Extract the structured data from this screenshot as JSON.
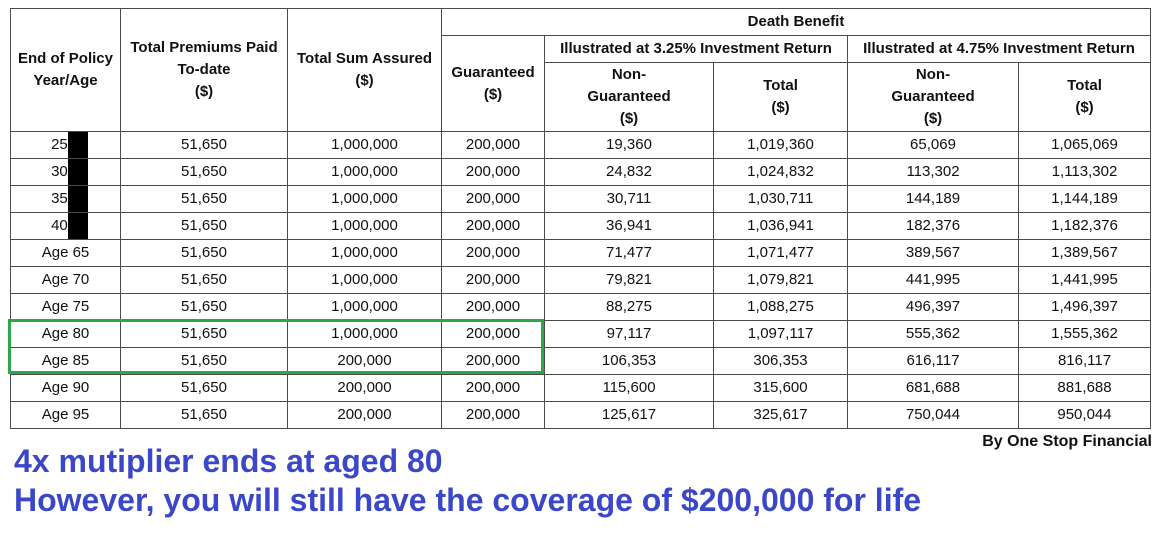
{
  "table": {
    "header": {
      "col_year": [
        "End of Policy",
        "Year/Age"
      ],
      "col_premiums": [
        "Total Premiums Paid",
        "To-date",
        "($)"
      ],
      "col_sum_assured": [
        "Total Sum Assured",
        "($)"
      ],
      "death_benefit": "Death Benefit",
      "guaranteed": [
        "Guaranteed",
        "($)"
      ],
      "illustrated_low": "Illustrated at 3.25% Investment Return",
      "illustrated_high": "Illustrated at 4.75% Investment Return",
      "non_guaranteed": [
        "Non-",
        "Guaranteed",
        "($)"
      ],
      "total": [
        "Total",
        "($)"
      ]
    },
    "rows": [
      [
        "25/",
        "51,650",
        "1,000,000",
        "200,000",
        "19,360",
        "1,019,360",
        "65,069",
        "1,065,069"
      ],
      [
        "30/",
        "51,650",
        "1,000,000",
        "200,000",
        "24,832",
        "1,024,832",
        "113,302",
        "1,113,302"
      ],
      [
        "35/",
        "51,650",
        "1,000,000",
        "200,000",
        "30,711",
        "1,030,711",
        "144,189",
        "1,144,189"
      ],
      [
        "40/",
        "51,650",
        "1,000,000",
        "200,000",
        "36,941",
        "1,036,941",
        "182,376",
        "1,182,376"
      ],
      [
        "Age 65",
        "51,650",
        "1,000,000",
        "200,000",
        "71,477",
        "1,071,477",
        "389,567",
        "1,389,567"
      ],
      [
        "Age 70",
        "51,650",
        "1,000,000",
        "200,000",
        "79,821",
        "1,079,821",
        "441,995",
        "1,441,995"
      ],
      [
        "Age 75",
        "51,650",
        "1,000,000",
        "200,000",
        "88,275",
        "1,088,275",
        "496,397",
        "1,496,397"
      ],
      [
        "Age 80",
        "51,650",
        "1,000,000",
        "200,000",
        "97,117",
        "1,097,117",
        "555,362",
        "1,555,362"
      ],
      [
        "Age 85",
        "51,650",
        "200,000",
        "200,000",
        "106,353",
        "306,353",
        "616,117",
        "816,117"
      ],
      [
        "Age 90",
        "51,650",
        "200,000",
        "200,000",
        "115,600",
        "315,600",
        "681,688",
        "881,688"
      ],
      [
        "Age 95",
        "51,650",
        "200,000",
        "200,000",
        "125,617",
        "325,617",
        "750,044",
        "950,044"
      ]
    ]
  },
  "credit": "By One Stop Financial",
  "note": {
    "line1": "4x mutiplier ends at aged 80",
    "line2": "However, you will still have the coverage of $200,000 for life"
  },
  "colors": {
    "highlight": "#2ea64a",
    "note_text": "#3b47c9"
  }
}
